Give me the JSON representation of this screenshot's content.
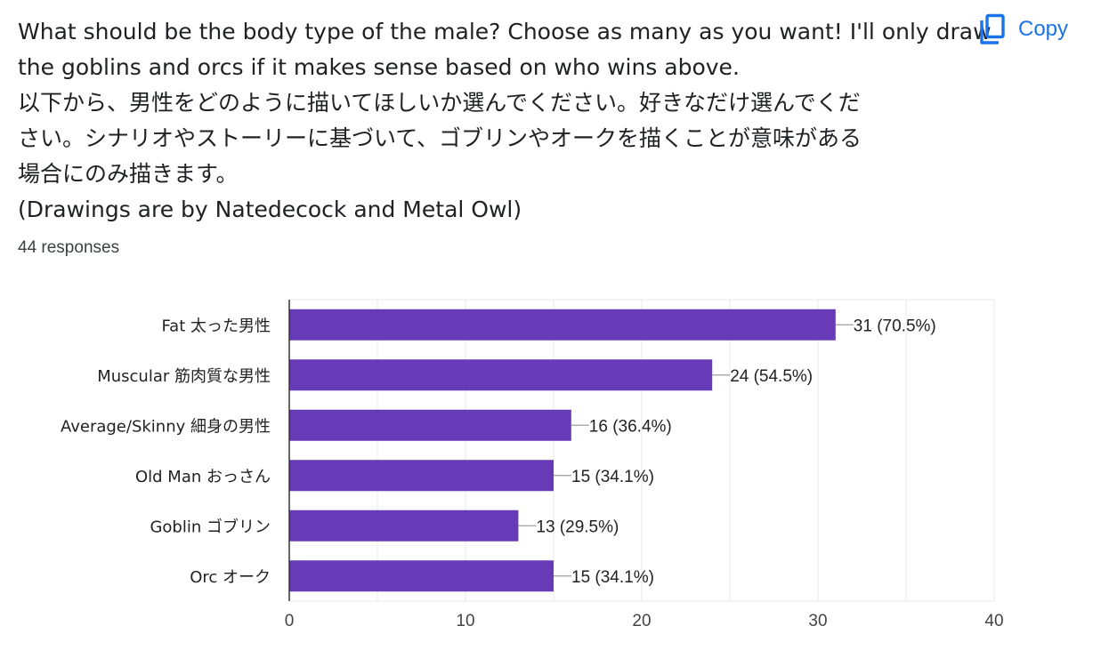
{
  "question": {
    "lines": [
      "What should be the body type of the male? Choose as many as you want! I'll only draw",
      "the goblins and orcs if it makes sense based on who wins above.",
      "以下から、男性をどのように描いてほしいか選んでください。好きなだけ選んでくだ",
      "さい。シナリオやストーリーに基づいて、ゴブリンやオークを描くことが意味がある",
      "場合にのみ描きます。",
      "(Drawings are by Natedecock and Metal Owl)"
    ]
  },
  "responses_label": "44 responses",
  "copy_button": {
    "label": "Copy",
    "icon": "copy-icon"
  },
  "colors": {
    "bar": "#673ab7",
    "accent": "#1a73e8",
    "grid": "#e8e8e8",
    "axis": "#333333"
  },
  "chart_data": {
    "type": "bar",
    "orientation": "horizontal",
    "categories": [
      "Fat 太った男性",
      "Muscular 筋肉質な男性",
      "Average/Skinny 細身の男性",
      "Old Man おっさん",
      "Goblin ゴブリン",
      "Orc オーク"
    ],
    "values": [
      31,
      24,
      16,
      15,
      13,
      15
    ],
    "data_labels": [
      "31 (70.5%)",
      "24 (54.5%)",
      "16 (36.4%)",
      "15 (34.1%)",
      "13 (29.5%)",
      "15 (34.1%)"
    ],
    "xlim": [
      0,
      40
    ],
    "xticks": [
      0,
      10,
      20,
      30,
      40
    ],
    "grid": true,
    "title": "",
    "xlabel": "",
    "ylabel": ""
  }
}
